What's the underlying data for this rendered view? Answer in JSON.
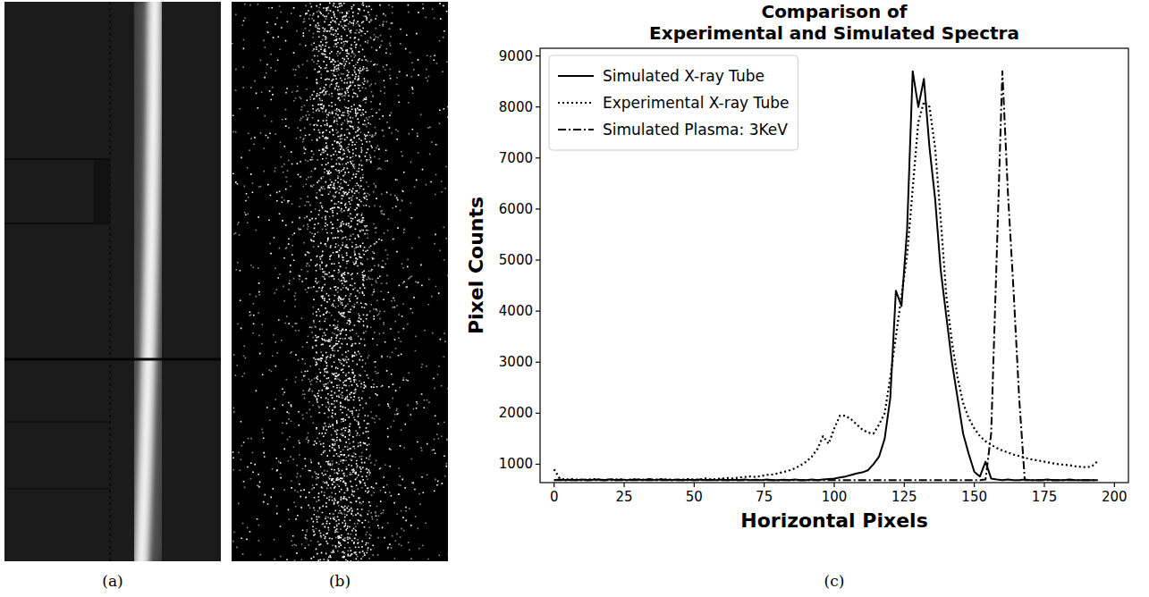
{
  "figure": {
    "panel_labels": [
      "(a)",
      "(b)",
      "(c)"
    ]
  },
  "chart_data": {
    "type": "line",
    "title": "Comparison of Experimental and Simulated Spectra",
    "x_label": "Horizontal Pixels",
    "y_label": "Pixel Counts",
    "xlim": [
      -5,
      205
    ],
    "ylim": [
      640,
      9150
    ],
    "xticks": [
      0,
      25,
      50,
      75,
      100,
      125,
      150,
      175,
      200
    ],
    "yticks": [
      1000,
      2000,
      3000,
      4000,
      5000,
      6000,
      7000,
      8000,
      9000
    ],
    "grid": false,
    "legend": "upper left",
    "x": [
      0,
      2,
      4,
      6,
      8,
      10,
      12,
      14,
      16,
      18,
      20,
      22,
      24,
      26,
      28,
      30,
      32,
      34,
      36,
      38,
      40,
      42,
      44,
      46,
      48,
      50,
      52,
      54,
      56,
      58,
      60,
      62,
      64,
      66,
      68,
      70,
      72,
      74,
      76,
      78,
      80,
      82,
      84,
      86,
      88,
      90,
      92,
      94,
      96,
      98,
      100,
      102,
      104,
      106,
      108,
      110,
      112,
      114,
      116,
      118,
      120,
      122,
      124,
      126,
      128,
      130,
      132,
      134,
      136,
      138,
      140,
      142,
      144,
      146,
      148,
      150,
      152,
      154,
      156,
      158,
      160,
      162,
      164,
      166,
      168,
      170,
      172,
      174,
      176,
      178,
      180,
      182,
      184,
      186,
      188,
      190,
      192,
      194
    ],
    "series": [
      {
        "name": "Simulated X-ray Tube",
        "color": "#000000",
        "line_style": "solid",
        "values": [
          690,
          700,
          690,
          695,
          690,
          700,
          690,
          695,
          700,
          690,
          705,
          690,
          700,
          690,
          695,
          700,
          690,
          710,
          690,
          700,
          695,
          690,
          700,
          690,
          695,
          690,
          700,
          690,
          695,
          690,
          700,
          690,
          695,
          690,
          700,
          690,
          695,
          690,
          700,
          690,
          690,
          695,
          690,
          700,
          690,
          690,
          700,
          690,
          700,
          710,
          720,
          740,
          760,
          790,
          820,
          840,
          880,
          1000,
          1150,
          1500,
          2300,
          4400,
          4100,
          5600,
          8700,
          8000,
          8550,
          7200,
          6200,
          4800,
          3900,
          3000,
          2300,
          1600,
          1200,
          850,
          760,
          1050,
          720,
          700,
          690,
          700,
          690,
          690,
          700,
          690,
          690,
          690,
          700,
          690,
          690,
          690,
          700,
          690,
          690,
          690,
          690,
          690
        ]
      },
      {
        "name": "Experimental X-ray Tube",
        "color": "#000000",
        "line_style": "dotted",
        "values": [
          900,
          720,
          700,
          710,
          700,
          690,
          700,
          710,
          700,
          690,
          700,
          705,
          700,
          690,
          710,
          700,
          700,
          690,
          700,
          710,
          700,
          700,
          690,
          700,
          710,
          700,
          700,
          720,
          700,
          710,
          720,
          730,
          720,
          740,
          750,
          760,
          750,
          770,
          790,
          800,
          820,
          850,
          880,
          920,
          980,
          1050,
          1150,
          1300,
          1550,
          1400,
          1700,
          1950,
          1950,
          1880,
          1780,
          1680,
          1620,
          1600,
          1780,
          2000,
          2700,
          3500,
          4300,
          5100,
          6400,
          7700,
          8100,
          8000,
          7200,
          5800,
          4300,
          3400,
          2700,
          2200,
          1900,
          1700,
          1550,
          1450,
          1380,
          1320,
          1270,
          1230,
          1190,
          1160,
          1130,
          1100,
          1080,
          1060,
          1040,
          1020,
          1000,
          990,
          980,
          960,
          950,
          940,
          960,
          1060
        ]
      },
      {
        "name": "Simulated Plasma: 3KeV",
        "color": "#000000",
        "line_style": "dashdot",
        "values": [
          690,
          690,
          690,
          690,
          690,
          690,
          690,
          690,
          690,
          690,
          690,
          690,
          690,
          690,
          690,
          690,
          690,
          690,
          690,
          690,
          690,
          690,
          690,
          690,
          690,
          690,
          690,
          690,
          690,
          690,
          690,
          690,
          690,
          690,
          690,
          690,
          690,
          690,
          690,
          690,
          690,
          690,
          690,
          690,
          690,
          690,
          690,
          690,
          690,
          690,
          690,
          690,
          690,
          690,
          690,
          690,
          690,
          690,
          690,
          690,
          690,
          690,
          690,
          690,
          690,
          690,
          690,
          690,
          690,
          690,
          690,
          690,
          690,
          690,
          690,
          690,
          690,
          700,
          1600,
          5100,
          8700,
          6300,
          4400,
          2300,
          690,
          690,
          690,
          690,
          690,
          690,
          690,
          690,
          690,
          690,
          690,
          690,
          690,
          690
        ]
      }
    ]
  }
}
